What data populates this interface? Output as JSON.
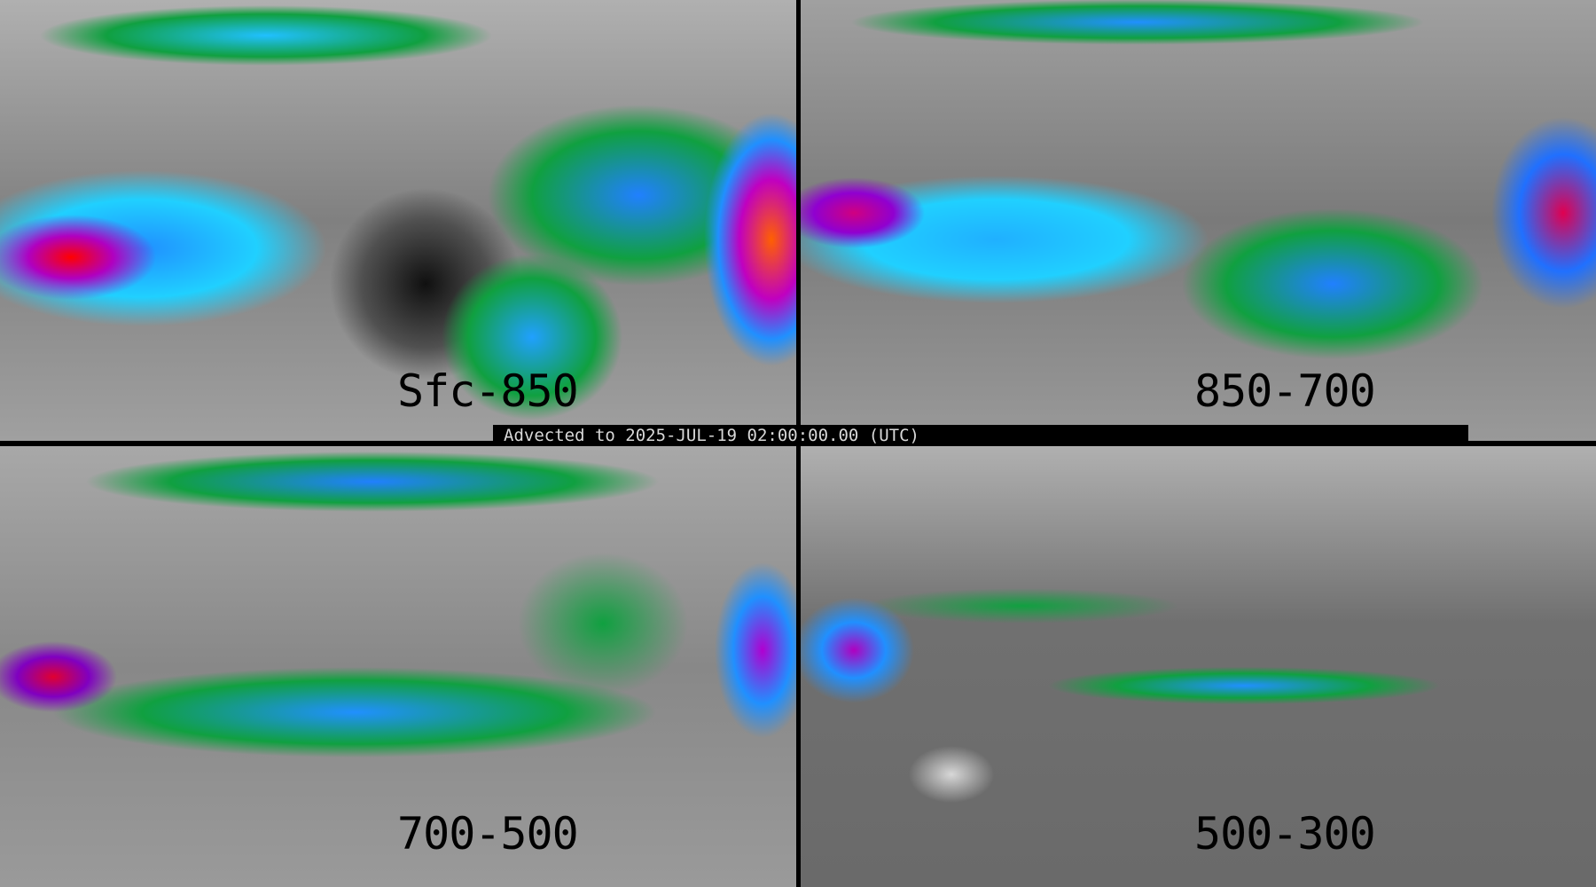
{
  "panels": [
    {
      "label": "Sfc-850"
    },
    {
      "label": "850-700"
    },
    {
      "label": "700-500"
    },
    {
      "label": "500-300"
    }
  ],
  "banner": {
    "text": "Advected to 2025-JUL-19 02:00:00.00 (UTC)"
  }
}
